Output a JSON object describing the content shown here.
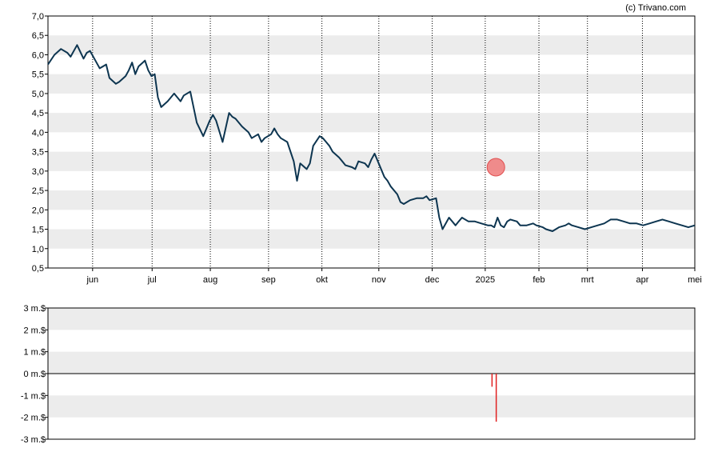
{
  "credit": "(c) Trivano.com",
  "chart_data": [
    {
      "type": "line",
      "name": "price",
      "y_ticks": [
        "0,5",
        "1,0",
        "1,5",
        "2,0",
        "2,5",
        "3,0",
        "3,5",
        "4,0",
        "4,5",
        "5,0",
        "5,5",
        "6,0",
        "6,5",
        "7,0"
      ],
      "ylim": [
        0.5,
        7.0
      ],
      "x_ticks": [
        "jun",
        "jul",
        "aug",
        "sep",
        "okt",
        "nov",
        "dec",
        "2025",
        "feb",
        "mrt",
        "apr",
        "mei"
      ],
      "grid": "alternating horizontal bands, dotted vertical lines",
      "line_color": "#0d3550",
      "marker_color": "#f07a7a",
      "marker": {
        "x": 138.5,
        "y": 3.1
      },
      "x": [
        0,
        2,
        4,
        6,
        7,
        9,
        11,
        12,
        13,
        15,
        16,
        18,
        19,
        21,
        22,
        24,
        25,
        26,
        27,
        28,
        30,
        31,
        32,
        33,
        34,
        35,
        37,
        39,
        41,
        42,
        44,
        46,
        48,
        50,
        51,
        52,
        54,
        56,
        57,
        58,
        60,
        62,
        63,
        65,
        66,
        67,
        69,
        70,
        71,
        72,
        74,
        76,
        77,
        78,
        80,
        81,
        82,
        84,
        85,
        86,
        87,
        88,
        90,
        91,
        92,
        94,
        95,
        96,
        98,
        99,
        100,
        101,
        102,
        104,
        105,
        106,
        108,
        109,
        110,
        112,
        114,
        116,
        117,
        118,
        120,
        121,
        122,
        124,
        126,
        127,
        128,
        130,
        132,
        134,
        136,
        137,
        138,
        139,
        140,
        141,
        142,
        143,
        145,
        146,
        148,
        150,
        151,
        153,
        154,
        156,
        158,
        160,
        161,
        162,
        164,
        166,
        168,
        170,
        172,
        173,
        174,
        176,
        178,
        180,
        182,
        184,
        186,
        188,
        190,
        192,
        194,
        196,
        198,
        200
      ],
      "y": [
        5.75,
        6.0,
        6.15,
        6.05,
        5.95,
        6.25,
        5.9,
        6.05,
        6.1,
        5.8,
        5.65,
        5.75,
        5.4,
        5.25,
        5.3,
        5.45,
        5.6,
        5.8,
        5.5,
        5.7,
        5.85,
        5.6,
        5.45,
        5.5,
        4.9,
        4.65,
        4.8,
        5.0,
        4.8,
        4.95,
        5.05,
        4.25,
        3.9,
        4.3,
        4.45,
        4.3,
        3.75,
        4.5,
        4.4,
        4.35,
        4.15,
        4.0,
        3.85,
        3.95,
        3.75,
        3.85,
        3.95,
        4.1,
        3.95,
        3.85,
        3.75,
        3.25,
        2.75,
        3.2,
        3.05,
        3.2,
        3.65,
        3.9,
        3.85,
        3.75,
        3.65,
        3.5,
        3.35,
        3.25,
        3.15,
        3.1,
        3.05,
        3.25,
        3.2,
        3.1,
        3.3,
        3.45,
        3.25,
        2.85,
        2.75,
        2.6,
        2.4,
        2.2,
        2.15,
        2.25,
        2.3,
        2.3,
        2.35,
        2.25,
        2.3,
        1.8,
        1.5,
        1.8,
        1.6,
        1.7,
        1.8,
        1.7,
        1.7,
        1.65,
        1.6,
        1.6,
        1.55,
        1.8,
        1.6,
        1.55,
        1.7,
        1.75,
        1.7,
        1.6,
        1.6,
        1.65,
        1.6,
        1.55,
        1.5,
        1.45,
        1.55,
        1.6,
        1.65,
        1.6,
        1.55,
        1.5,
        1.55,
        1.6,
        1.65,
        1.7,
        1.75,
        1.75,
        1.7,
        1.65,
        1.65,
        1.6,
        1.65,
        1.7,
        1.75,
        1.7,
        1.65,
        1.6,
        1.55,
        1.6
      ]
    },
    {
      "type": "bar",
      "name": "volume",
      "y_ticks": [
        "-3 m.$",
        "-2 m.$",
        "-1 m.$",
        "0 m.$",
        "1 m.$",
        "2 m.$",
        "3 m.$"
      ],
      "ylim": [
        -3,
        3
      ],
      "bar_color": "#e02020",
      "x": [
        137.3,
        138.6
      ],
      "values": [
        -0.6,
        -2.2
      ]
    }
  ]
}
